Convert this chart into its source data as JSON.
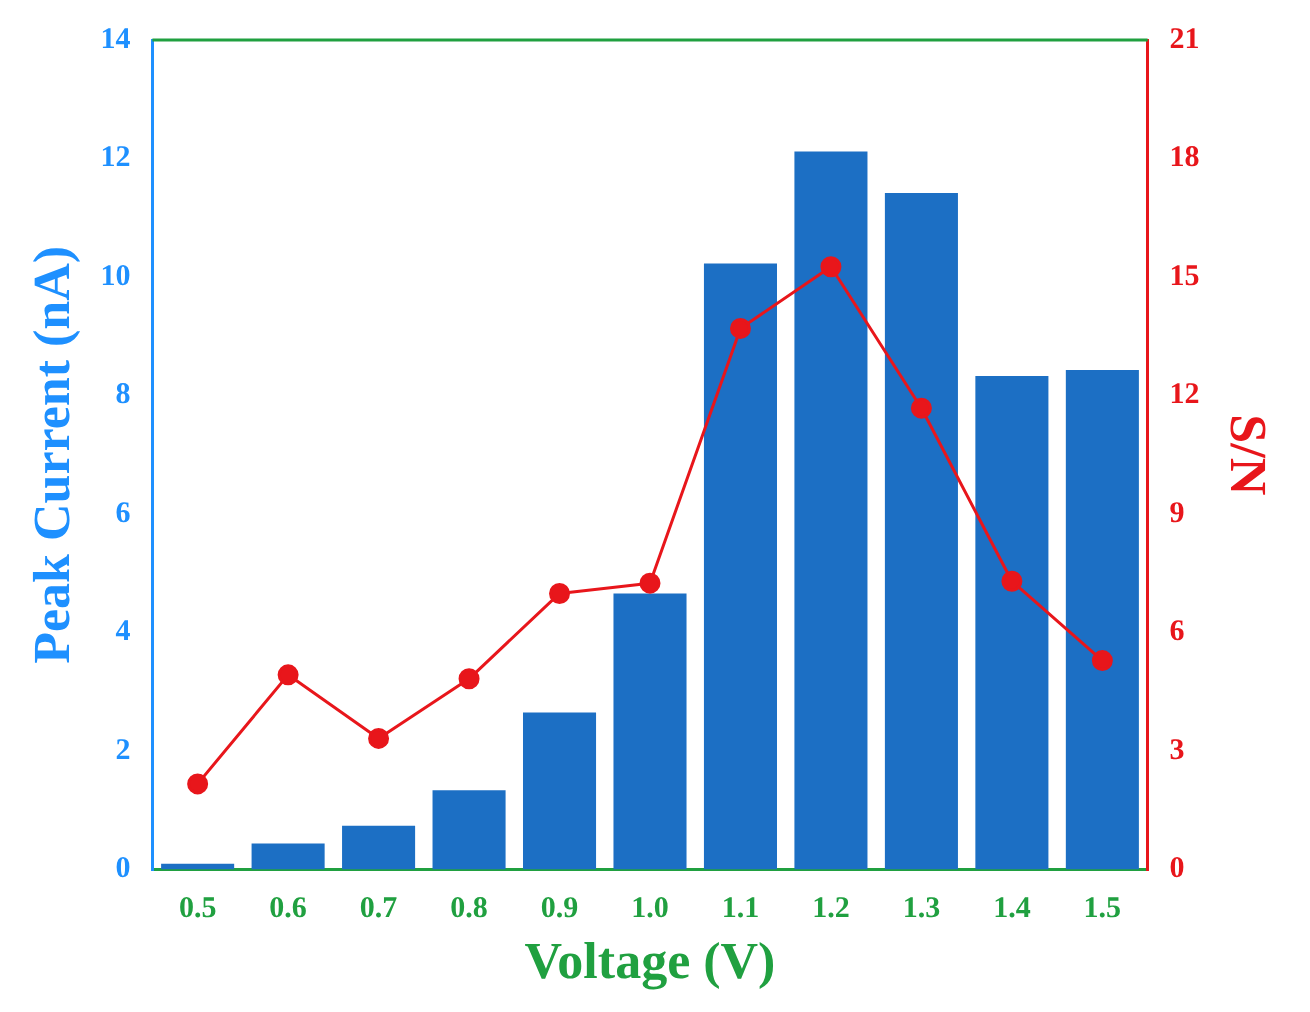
{
  "chart_data": {
    "type": "bar",
    "xlabel": "Voltage (V)",
    "ylabel": "Peak Current (nA)",
    "y2label": "S/N",
    "categories": [
      "0.5",
      "0.6",
      "0.7",
      "0.8",
      "0.9",
      "1.0",
      "1.1",
      "1.2",
      "1.3",
      "1.4",
      "1.5"
    ],
    "series": [
      {
        "color": "#1c6fc4",
        "values": [
          0.1,
          0.44,
          0.74,
          1.34,
          2.65,
          4.66,
          10.23,
          12.12,
          11.42,
          8.33,
          8.43
        ]
      },
      {
        "type": "line",
        "axis": "y2",
        "color": "#e8161b",
        "marker": "circle",
        "values": [
          2.17,
          4.93,
          3.32,
          4.83,
          6.99,
          7.25,
          13.7,
          15.26,
          11.68,
          7.3,
          5.29
        ]
      }
    ],
    "ylim": [
      0,
      14
    ],
    "yticks": [
      0,
      2,
      4,
      6,
      8,
      10,
      12,
      14
    ],
    "y2lim": [
      0,
      21
    ],
    "y2ticks": [
      0,
      3,
      6,
      9,
      12,
      15,
      18,
      21
    ],
    "grid": false,
    "legend": false
  }
}
